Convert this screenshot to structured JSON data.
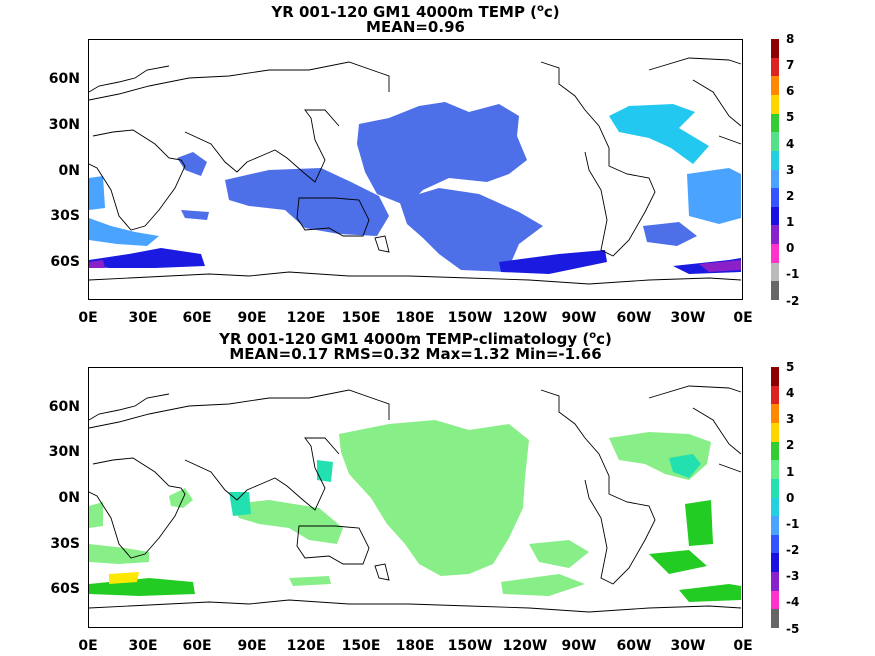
{
  "panels": [
    {
      "title_line1_pre": "YR 001-120 GM1 4000m TEMP (",
      "title_sup": "o",
      "title_line1_post": "c)",
      "title_line2": "MEAN=0.96",
      "lat_labels": [
        "60N",
        "30N",
        "0N",
        "30S",
        "60S"
      ],
      "lon_labels": [
        "0E",
        "30E",
        "60E",
        "90E",
        "120E",
        "150E",
        "180E",
        "150W",
        "120W",
        "90W",
        "60W",
        "30W",
        "0E"
      ],
      "colorbar_labels": [
        "8",
        "7",
        "6",
        "5",
        "4",
        "3",
        "2",
        "1",
        "0",
        "-1",
        "-2"
      ],
      "colorbar_colors": [
        "#8b0000",
        "#dd2222",
        "#ff8800",
        "#ffd700",
        "#33cc33",
        "#55e08a",
        "#22d0e0",
        "#4aa3ff",
        "#3355ff",
        "#1a10e0",
        "#8822cc",
        "#ff33cc",
        "#bbbbbb",
        "#666666"
      ],
      "fill_colors": {
        "main": "#4d6fe8",
        "light": "#22c8f0",
        "deep": "#1a1ae0",
        "violet": "#8a20c8"
      }
    },
    {
      "title_line1_pre": "YR 001-120 GM1 4000m TEMP-climatology (",
      "title_sup": "o",
      "title_line1_post": "c)",
      "title_line2": "MEAN=0.17   RMS=0.32   Max=1.32   Min=-1.66",
      "lat_labels": [
        "60N",
        "30N",
        "0N",
        "30S",
        "60S"
      ],
      "lon_labels": [
        "0E",
        "30E",
        "60E",
        "90E",
        "120E",
        "150E",
        "180E",
        "150W",
        "120W",
        "90W",
        "60W",
        "30W",
        "0E"
      ],
      "colorbar_labels": [
        "5",
        "4",
        "3",
        "2",
        "1",
        "0",
        "-1",
        "-2",
        "-3",
        "-4",
        "-5"
      ],
      "colorbar_colors": [
        "#8b0000",
        "#dd2222",
        "#ff8800",
        "#ffd700",
        "#33cc33",
        "#66ee88",
        "#22e0b0",
        "#22d0e0",
        "#4aa3ff",
        "#3355ff",
        "#1a10e0",
        "#8822cc",
        "#ff33cc",
        "#666666"
      ],
      "fill_colors": {
        "main": "#88ee88",
        "light": "#22e0b0",
        "deep": "#22cc22",
        "yellow": "#ffe800"
      }
    }
  ]
}
